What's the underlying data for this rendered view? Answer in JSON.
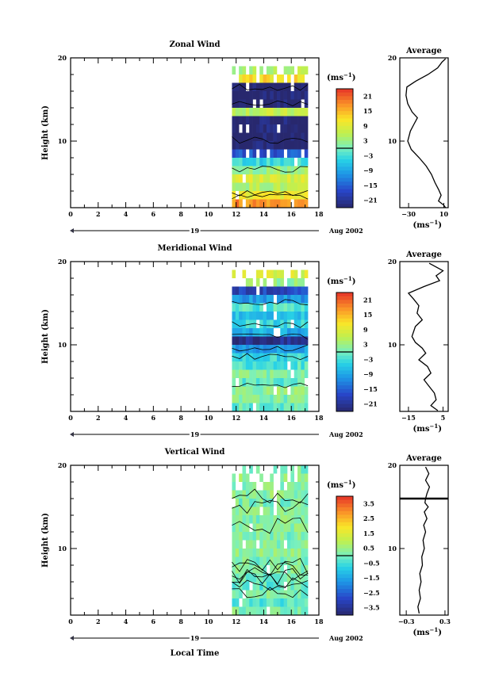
{
  "chart_data": [
    {
      "type": "heatmap",
      "title": "Zonal Wind",
      "ylabel": "Height (km)",
      "xlim": [
        0,
        18
      ],
      "ylim": [
        2,
        20
      ],
      "x_ticks": [
        "0",
        "2",
        "4",
        "6",
        "8",
        "10",
        "12",
        "14",
        "16",
        "18"
      ],
      "y_ticks": [
        "10",
        "20"
      ],
      "date_axis": {
        "day": "19",
        "month_label": "Aug 2002"
      },
      "colorbar": {
        "unit": "(ms",
        "unit_exp": "−1",
        "unit_close": ")",
        "ticks": [
          "21",
          "15",
          "9",
          "3",
          "−3",
          "−9",
          "−15",
          "−21"
        ],
        "range": [
          -24,
          24
        ]
      },
      "data_time_range": [
        11.7,
        17.2
      ],
      "height_profile": [
        {
          "h": 18.5,
          "v": 5
        },
        {
          "h": 17.5,
          "v": 12
        },
        {
          "h": 16.5,
          "v": -24
        },
        {
          "h": 15.5,
          "v": -24
        },
        {
          "h": 14.5,
          "v": -24
        },
        {
          "h": 13.5,
          "v": 6
        },
        {
          "h": 12.5,
          "v": -24
        },
        {
          "h": 11.5,
          "v": -24
        },
        {
          "h": 10.5,
          "v": -24
        },
        {
          "h": 9.5,
          "v": -24
        },
        {
          "h": 8.5,
          "v": -16
        },
        {
          "h": 7.5,
          "v": -4
        },
        {
          "h": 6.5,
          "v": 3
        },
        {
          "h": 5.5,
          "v": 8
        },
        {
          "h": 4.5,
          "v": 5
        },
        {
          "h": 3.5,
          "v": 10
        },
        {
          "h": 2.5,
          "v": 18
        },
        {
          "h": 1.5,
          "v": 14
        }
      ],
      "average": {
        "title": "Average",
        "xlabel": "(ms",
        "xlabel_exp": "−1",
        "xlabel_close": ")",
        "xlim": [
          -40,
          15
        ],
        "ylim": [
          2,
          20
        ],
        "x_ticks": [
          "−30",
          "10"
        ],
        "y_ticks": [
          "10",
          "20"
        ],
        "profile": [
          {
            "x": 12,
            "y": 19.9
          },
          {
            "x": 8,
            "y": 19.5
          },
          {
            "x": 3,
            "y": 18.8
          },
          {
            "x": -8,
            "y": 18.0
          },
          {
            "x": -22,
            "y": 17.2
          },
          {
            "x": -32,
            "y": 16.5
          },
          {
            "x": -33,
            "y": 15.5
          },
          {
            "x": -31,
            "y": 14.5
          },
          {
            "x": -26,
            "y": 13.5
          },
          {
            "x": -20,
            "y": 12.8
          },
          {
            "x": -24,
            "y": 12.0
          },
          {
            "x": -28,
            "y": 11.2
          },
          {
            "x": -31,
            "y": 10.0
          },
          {
            "x": -27,
            "y": 9.0
          },
          {
            "x": -18,
            "y": 8.0
          },
          {
            "x": -10,
            "y": 7.0
          },
          {
            "x": -4,
            "y": 6.0
          },
          {
            "x": 0,
            "y": 5.0
          },
          {
            "x": 4,
            "y": 4.2
          },
          {
            "x": 7,
            "y": 3.5
          },
          {
            "x": 4,
            "y": 2.8
          },
          {
            "x": 10,
            "y": 2.3
          },
          {
            "x": 12,
            "y": 2.0
          }
        ]
      }
    },
    {
      "type": "heatmap",
      "title": "Meridional Wind",
      "ylabel": "Height (km)",
      "xlim": [
        0,
        18
      ],
      "ylim": [
        2,
        20
      ],
      "x_ticks": [
        "0",
        "2",
        "4",
        "6",
        "8",
        "10",
        "12",
        "14",
        "16",
        "18"
      ],
      "y_ticks": [
        "10",
        "20"
      ],
      "date_axis": {
        "day": "19",
        "month_label": "Aug 2002"
      },
      "colorbar": {
        "unit": "(ms",
        "unit_exp": "−1",
        "unit_close": ")",
        "ticks": [
          "21",
          "15",
          "9",
          "3",
          "−3",
          "−9",
          "−15",
          "−21"
        ],
        "range": [
          -24,
          24
        ]
      },
      "data_time_range": [
        11.7,
        17.2
      ],
      "height_profile": [
        {
          "h": 18.5,
          "v": 8
        },
        {
          "h": 17.5,
          "v": 2
        },
        {
          "h": 16.5,
          "v": -18
        },
        {
          "h": 15.5,
          "v": -10
        },
        {
          "h": 14.5,
          "v": -2
        },
        {
          "h": 13.5,
          "v": -6
        },
        {
          "h": 12.5,
          "v": -4
        },
        {
          "h": 11.5,
          "v": -8
        },
        {
          "h": 10.5,
          "v": -22
        },
        {
          "h": 9.5,
          "v": -10
        },
        {
          "h": 8.5,
          "v": -4
        },
        {
          "h": 7.5,
          "v": -2
        },
        {
          "h": 6.5,
          "v": 1
        },
        {
          "h": 5.5,
          "v": -1
        },
        {
          "h": 4.5,
          "v": 2
        },
        {
          "h": 3.5,
          "v": 1
        },
        {
          "h": 2.5,
          "v": -1
        },
        {
          "h": 1.5,
          "v": 0
        }
      ],
      "average": {
        "title": "Average",
        "xlabel": "(ms",
        "xlabel_exp": "−1",
        "xlabel_close": ")",
        "xlim": [
          -20,
          8
        ],
        "ylim": [
          2,
          20
        ],
        "x_ticks": [
          "−15",
          "5"
        ],
        "y_ticks": [
          "10",
          "20"
        ],
        "profile": [
          {
            "x": -3,
            "y": 19.8
          },
          {
            "x": 5,
            "y": 18.9
          },
          {
            "x": 1,
            "y": 18.3
          },
          {
            "x": 3,
            "y": 17.7
          },
          {
            "x": -6,
            "y": 17.0
          },
          {
            "x": -15,
            "y": 16.2
          },
          {
            "x": -12,
            "y": 15.5
          },
          {
            "x": -9,
            "y": 14.7
          },
          {
            "x": -10,
            "y": 13.8
          },
          {
            "x": -7,
            "y": 13.0
          },
          {
            "x": -11,
            "y": 12.2
          },
          {
            "x": -13,
            "y": 11.0
          },
          {
            "x": -11,
            "y": 10.3
          },
          {
            "x": -7,
            "y": 9.6
          },
          {
            "x": -5,
            "y": 9.0
          },
          {
            "x": -9,
            "y": 8.2
          },
          {
            "x": -4,
            "y": 7.4
          },
          {
            "x": -2,
            "y": 6.6
          },
          {
            "x": -6,
            "y": 5.8
          },
          {
            "x": -3,
            "y": 5.0
          },
          {
            "x": 0,
            "y": 4.2
          },
          {
            "x": 1,
            "y": 3.4
          },
          {
            "x": -2,
            "y": 2.7
          },
          {
            "x": 2,
            "y": 2.1
          }
        ]
      }
    },
    {
      "type": "heatmap",
      "title": "Vertical Wind",
      "ylabel": "Height (km)",
      "xlabel": "Local Time",
      "xlim": [
        0,
        18
      ],
      "ylim": [
        2,
        20
      ],
      "x_ticks": [
        "0",
        "2",
        "4",
        "6",
        "8",
        "10",
        "12",
        "14",
        "16",
        "18"
      ],
      "y_ticks": [
        "10",
        "20"
      ],
      "date_axis": {
        "day": "19",
        "month_label": "Aug 2002"
      },
      "colorbar": {
        "unit": "(ms",
        "unit_exp": "−1",
        "unit_close": ")",
        "ticks": [
          "3.5",
          "2.5",
          "1.5",
          "0.5",
          "−0.5",
          "−1.5",
          "−2.5",
          "−3.5"
        ],
        "range": [
          -4,
          4
        ]
      },
      "data_time_range": [
        11.7,
        17.2
      ],
      "height_profile": [
        {
          "h": 19.5,
          "v": 0.1
        },
        {
          "h": 18.5,
          "v": 0.4
        },
        {
          "h": 17.5,
          "v": 0.2
        },
        {
          "h": 16.5,
          "v": 0.3
        },
        {
          "h": 15.5,
          "v": 0.1
        },
        {
          "h": 14.5,
          "v": 0.4
        },
        {
          "h": 13.5,
          "v": 0.2
        },
        {
          "h": 12.5,
          "v": 0.3
        },
        {
          "h": 11.5,
          "v": 0.1
        },
        {
          "h": 10.5,
          "v": 0.2
        },
        {
          "h": 9.5,
          "v": 0.3
        },
        {
          "h": 8.5,
          "v": 0.1
        },
        {
          "h": 7.5,
          "v": 0.2
        },
        {
          "h": 6.5,
          "v": 0.0
        },
        {
          "h": 5.5,
          "v": -0.2
        },
        {
          "h": 4.5,
          "v": 0.1
        },
        {
          "h": 3.5,
          "v": -0.3
        },
        {
          "h": 2.5,
          "v": 0.2
        }
      ],
      "average": {
        "title": "Average",
        "xlabel": "(ms",
        "xlabel_exp": "−1",
        "xlabel_close": ")",
        "xlim": [
          -0.4,
          0.35
        ],
        "ylim": [
          2,
          20
        ],
        "x_ticks": [
          "−0.3",
          "0.3"
        ],
        "y_ticks": [
          "10",
          "20"
        ],
        "profile": [
          {
            "x": 0.0,
            "y": 19.8
          },
          {
            "x": 0.05,
            "y": 19.0
          },
          {
            "x": 0.0,
            "y": 18.2
          },
          {
            "x": 0.06,
            "y": 17.4
          },
          {
            "x": 0.02,
            "y": 16.6
          },
          {
            "x": 0.0,
            "y": 16.0
          },
          {
            "x": -0.01,
            "y": 15.5
          },
          {
            "x": 0.04,
            "y": 15.0
          },
          {
            "x": -0.02,
            "y": 14.4
          },
          {
            "x": 0.02,
            "y": 13.6
          },
          {
            "x": -0.03,
            "y": 12.8
          },
          {
            "x": 0.0,
            "y": 12.0
          },
          {
            "x": -0.04,
            "y": 11.0
          },
          {
            "x": -0.02,
            "y": 10.0
          },
          {
            "x": -0.06,
            "y": 9.0
          },
          {
            "x": -0.05,
            "y": 8.0
          },
          {
            "x": -0.09,
            "y": 7.0
          },
          {
            "x": -0.07,
            "y": 6.0
          },
          {
            "x": -0.1,
            "y": 5.0
          },
          {
            "x": -0.08,
            "y": 4.0
          },
          {
            "x": -0.12,
            "y": 3.0
          },
          {
            "x": -0.1,
            "y": 2.2
          }
        ]
      }
    }
  ]
}
